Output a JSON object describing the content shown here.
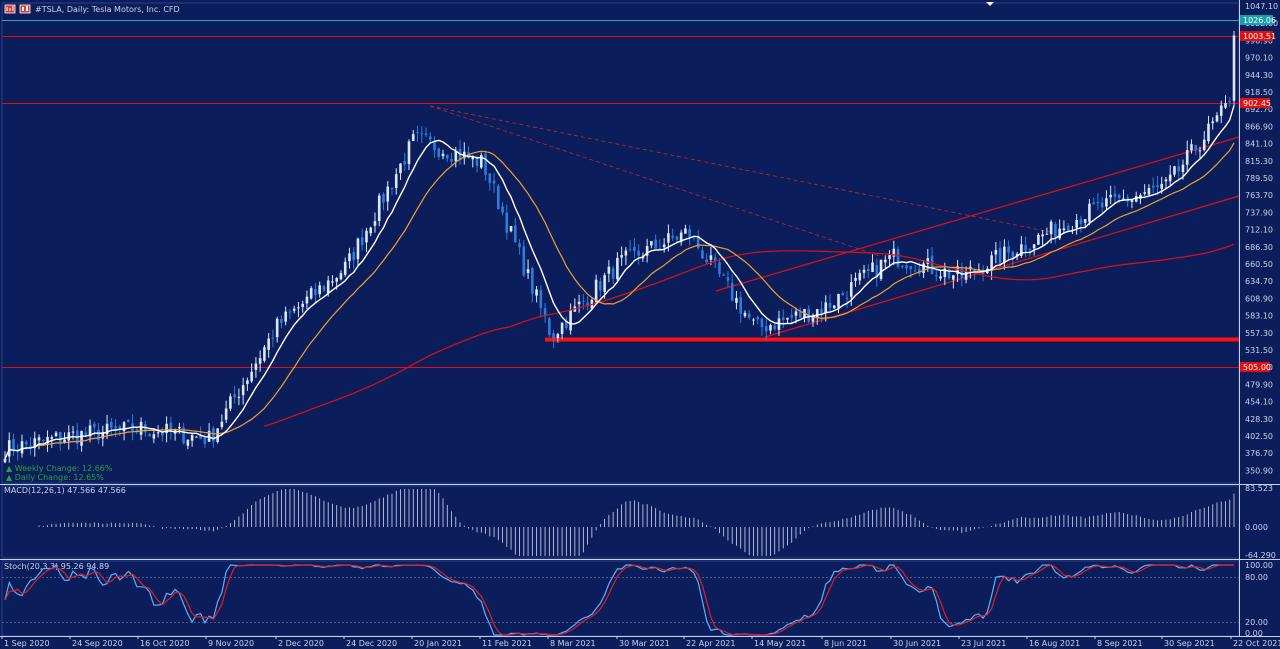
{
  "window": {
    "title": "#TSLA, Daily:  Tesla Motors, Inc.  CFD",
    "colors": {
      "background": "#0b1e5b",
      "up": "#d8e6ff",
      "down": "#2f7bd9",
      "ma_fast": "#ffffff",
      "ma_mid": "#f0a030",
      "ma_slow": "#e01010",
      "level": "#e01010"
    }
  },
  "icons": [
    "chart-icon",
    "candle-icon"
  ],
  "price_panel": {
    "price_axis": [
      "1047.10",
      "1022.80",
      "996.90",
      "970.10",
      "944.30",
      "918.50",
      "892.70",
      "866.90",
      "841.10",
      "815.30",
      "789.50",
      "763.70",
      "737.90",
      "712.10",
      "686.30",
      "660.50",
      "634.70",
      "608.90",
      "583.10",
      "557.30",
      "531.50",
      "505.70",
      "479.90",
      "454.10",
      "428.30",
      "402.50",
      "376.70",
      "350.90"
    ],
    "tags": {
      "last": "1026.06",
      "upper": "1003.51",
      "mid": "902.45",
      "lower": "505.00"
    },
    "annotations": [
      "▲ Weekly Change: 12.66%",
      "▲ Daily Change: 12.65%"
    ]
  },
  "macd_panel": {
    "label": "MACD(12,26,1) 47.566 47.566",
    "axis": [
      "83.523",
      "0.000",
      "-64.290"
    ]
  },
  "stoch_panel": {
    "label": "Stoch(20,3,3) 95.26 94.89",
    "axis": [
      "100.00",
      "80.00",
      "20.00",
      "0.00"
    ]
  },
  "time_axis": [
    "1 Sep 2020",
    "24 Sep 2020",
    "16 Oct 2020",
    "9 Nov 2020",
    "2 Dec 2020",
    "24 Dec 2020",
    "20 Jan 2021",
    "11 Feb 2021",
    "8 Mar 2021",
    "30 Mar 2021",
    "22 Apr 2021",
    "14 May 2021",
    "8 Jun 2021",
    "30 Jun 2021",
    "23 Jul 2021",
    "16 Aug 2021",
    "8 Sep 2021",
    "30 Sep 2021",
    "22 Oct 2021"
  ],
  "chart_data": {
    "type": "candlestick",
    "symbol": "#TSLA",
    "timeframe": "Daily",
    "ylim": [
      350.9,
      1047.1
    ],
    "close_series": [
      {
        "date": "1 Sep 2020",
        "close": 400
      },
      {
        "date": "24 Sep 2020",
        "close": 420
      },
      {
        "date": "16 Oct 2020",
        "close": 430
      },
      {
        "date": "9 Nov 2020",
        "close": 415
      },
      {
        "date": "2 Dec 2020",
        "close": 580
      },
      {
        "date": "24 Dec 2020",
        "close": 665
      },
      {
        "date": "20 Jan 2021",
        "close": 850
      },
      {
        "date": "11 Feb 2021",
        "close": 815
      },
      {
        "date": "8 Mar 2021",
        "close": 565
      },
      {
        "date": "30 Mar 2021",
        "close": 670
      },
      {
        "date": "22 Apr 2021",
        "close": 715
      },
      {
        "date": "14 May 2021",
        "close": 575
      },
      {
        "date": "8 Jun 2021",
        "close": 605
      },
      {
        "date": "30 Jun 2021",
        "close": 680
      },
      {
        "date": "23 Jul 2021",
        "close": 650
      },
      {
        "date": "16 Aug 2021",
        "close": 700
      },
      {
        "date": "8 Sep 2021",
        "close": 750
      },
      {
        "date": "30 Sep 2021",
        "close": 780
      },
      {
        "date": "22 Oct 2021",
        "close": 910
      }
    ],
    "last_price": 1026.06,
    "horizontal_levels": [
      1003.51,
      902.45,
      539,
      505.0
    ],
    "macd": {
      "value": 47.566,
      "signal": 47.566,
      "range": [
        -64.29,
        83.523
      ]
    },
    "stoch": {
      "k": 95.26,
      "d": 94.89,
      "levels": [
        80,
        20
      ],
      "range": [
        0,
        100
      ]
    }
  }
}
